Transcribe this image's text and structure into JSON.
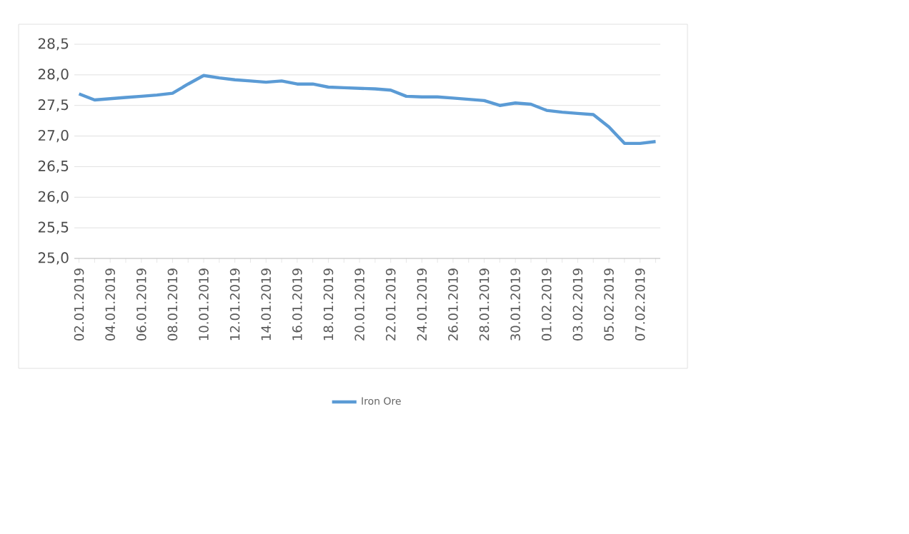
{
  "chart_data": {
    "type": "line",
    "categories": [
      "02.01.2019",
      null,
      "04.01.2019",
      null,
      "06.01.2019",
      null,
      "08.01.2019",
      null,
      "10.01.2019",
      null,
      "12.01.2019",
      null,
      "14.01.2019",
      null,
      "16.01.2019",
      null,
      "18.01.2019",
      null,
      "20.01.2019",
      null,
      "22.01.2019",
      null,
      "24.01.2019",
      null,
      "26.01.2019",
      null,
      "28.01.2019",
      null,
      "30.01.2019",
      null,
      "01.02.2019",
      null,
      "03.02.2019",
      null,
      "05.02.2019",
      null,
      "07.02.2019",
      null
    ],
    "series": [
      {
        "name": "Iron Ore",
        "color": "#5b9bd5",
        "values": [
          27.69,
          27.59,
          27.61,
          27.63,
          27.65,
          27.67,
          27.7,
          27.85,
          27.99,
          27.95,
          27.92,
          27.9,
          27.88,
          27.9,
          27.85,
          27.85,
          27.8,
          27.79,
          27.78,
          27.77,
          27.75,
          27.65,
          27.64,
          27.64,
          27.62,
          27.6,
          27.58,
          27.5,
          27.54,
          27.52,
          27.42,
          27.39,
          27.37,
          27.35,
          27.15,
          26.88,
          26.88,
          26.91
        ]
      }
    ],
    "ylim": [
      25.0,
      28.5
    ],
    "yticks": [
      {
        "value": 25.0,
        "label": "25,0"
      },
      {
        "value": 25.5,
        "label": "25,5"
      },
      {
        "value": 26.0,
        "label": "26,0"
      },
      {
        "value": 26.5,
        "label": "26,5"
      },
      {
        "value": 27.0,
        "label": "27,0"
      },
      {
        "value": 27.5,
        "label": "27,5"
      },
      {
        "value": 28.0,
        "label": "28,0"
      },
      {
        "value": 28.5,
        "label": "28,5"
      }
    ],
    "grid": "y",
    "legend": "bottom",
    "line_style": "solid"
  }
}
